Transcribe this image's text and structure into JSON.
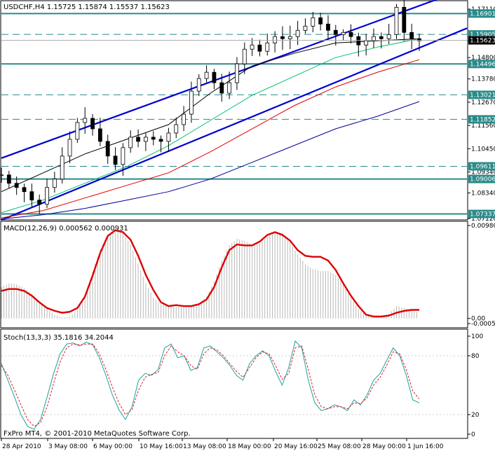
{
  "chart_data": [
    {
      "type": "candlestick",
      "title": "USDCHF,H4  1.15725 1.15874 1.15537 1.15623",
      "symbol": "USDCHF",
      "timeframe": "H4",
      "ohlc_last": [
        1.15725,
        1.15874,
        1.15537,
        1.15623
      ],
      "ylim": [
        1.0712,
        1.1738
      ],
      "y_ticks": [
        "1.17110",
        "1.15590",
        "1.14800",
        "1.13780",
        "1.12670",
        "1.11560",
        "1.10450",
        "1.09340",
        "1.08340",
        "1.07120"
      ],
      "x_ticks": [
        "28 Apr 2010",
        "3 May 08:00",
        "6 May 00:00",
        "10 May 16:00",
        "13 May 08:00",
        "18 May 00:00",
        "20 May 16:00",
        "25 May 08:00",
        "28 May 00:00",
        "1 Jun 16:00"
      ],
      "bid_price": 1.15623,
      "horizontal_levels": [
        {
          "value": 1.16901,
          "label": "1.16901",
          "style": "solid"
        },
        {
          "value": 1.15905,
          "label": "1.15905",
          "style": "dashed"
        },
        {
          "value": 1.14496,
          "label": "1.14496",
          "style": "solid"
        },
        {
          "value": 1.13021,
          "label": "1.13021",
          "style": "dashed"
        },
        {
          "value": 1.11852,
          "label": "1.11852",
          "style": "dashed"
        },
        {
          "value": 1.09611,
          "label": "1.09611",
          "style": "dashed"
        },
        {
          "value": 1.09006,
          "label": "1.09006",
          "style": "solid"
        },
        {
          "value": 1.07337,
          "label": "1.07337",
          "style": "solid"
        }
      ],
      "channel_lines": [
        {
          "name": "upper",
          "start": 1.1,
          "end": 1.181
        },
        {
          "name": "lower",
          "start": 1.0705,
          "end": 1.162
        }
      ],
      "close_path": [
        1.092,
        1.088,
        1.086,
        1.084,
        1.08,
        1.078,
        1.086,
        1.09,
        1.101,
        1.109,
        1.117,
        1.119,
        1.114,
        1.108,
        1.101,
        1.097,
        1.105,
        1.11,
        1.108,
        1.11,
        1.109,
        1.108,
        1.112,
        1.116,
        1.121,
        1.132,
        1.138,
        1.141,
        1.136,
        1.131,
        1.136,
        1.145,
        1.152,
        1.154,
        1.151,
        1.155,
        1.158,
        1.157,
        1.158,
        1.161,
        1.163,
        1.167,
        1.164,
        1.161,
        1.159,
        1.16,
        1.158,
        1.154,
        1.156,
        1.158,
        1.157,
        1.159,
        1.172,
        1.16,
        1.157,
        1.156
      ],
      "moving_averages": [
        {
          "color": "#000000",
          "values": [
            1.084,
            1.093,
            1.102,
            1.109,
            1.116,
            1.131,
            1.144,
            1.15,
            1.155,
            1.156,
            1.157
          ]
        },
        {
          "color": "#00c070",
          "values": [
            1.074,
            1.08,
            1.088,
            1.096,
            1.106,
            1.118,
            1.13,
            1.139,
            1.148,
            1.153,
            1.157
          ]
        },
        {
          "color": "#e00000",
          "values": [
            1.0715,
            1.075,
            1.081,
            1.087,
            1.093,
            1.103,
            1.114,
            1.125,
            1.134,
            1.141,
            1.147
          ]
        },
        {
          "color": "#0000a0",
          "values": [
            1.071,
            1.073,
            1.076,
            1.08,
            1.084,
            1.09,
            1.098,
            1.106,
            1.114,
            1.12,
            1.127
          ]
        }
      ]
    },
    {
      "type": "bar",
      "title": "MACD(12,26,9) 0.000562 0.000931",
      "y_ticks": [
        "0.00980",
        "0.00",
        "-0.00054"
      ],
      "ylim": [
        -0.00054,
        0.0098
      ],
      "histogram": [
        0.0033,
        0.0037,
        0.0036,
        0.0032,
        0.0026,
        0.0018,
        0.001,
        0.0004,
        0.0001,
        0.0002,
        0.0009,
        0.0025,
        0.0049,
        0.0073,
        0.0088,
        0.0094,
        0.009,
        0.0078,
        0.0058,
        0.0037,
        0.0022,
        0.0015,
        0.0013,
        0.0012,
        0.0012,
        0.0013,
        0.0016,
        0.0023,
        0.0039,
        0.0061,
        0.0077,
        0.0084,
        0.0082,
        0.0078,
        0.0079,
        0.0086,
        0.0092,
        0.009,
        0.008,
        0.0068,
        0.0057,
        0.0052,
        0.005,
        0.005,
        0.0046,
        0.0036,
        0.0022,
        0.001,
        0.0003,
        0.0001,
        0.0002,
        0.0005,
        0.0013,
        0.0011,
        0.0008,
        0.0006
      ],
      "signal_line": [
        0.0029,
        0.0031,
        0.0031,
        0.0029,
        0.0024,
        0.0017,
        0.0011,
        0.0008,
        0.0006,
        0.0007,
        0.0011,
        0.0023,
        0.0045,
        0.0069,
        0.0087,
        0.0093,
        0.0091,
        0.0083,
        0.0066,
        0.0046,
        0.003,
        0.0017,
        0.0013,
        0.0014,
        0.0013,
        0.0013,
        0.0015,
        0.002,
        0.0033,
        0.0054,
        0.0072,
        0.0078,
        0.0077,
        0.0077,
        0.0081,
        0.0088,
        0.0091,
        0.0088,
        0.0082,
        0.0072,
        0.0066,
        0.0065,
        0.0065,
        0.0061,
        0.0051,
        0.0037,
        0.0024,
        0.0013,
        0.0004,
        0.0002,
        0.0002,
        0.0003,
        0.0006,
        0.0008,
        0.0009,
        0.0009
      ]
    },
    {
      "type": "line",
      "title": "Stoch(13,3,3) 35.1816 34.2044",
      "y_ticks": [
        "100",
        "80",
        "20",
        "0"
      ],
      "ylim": [
        0,
        100
      ],
      "series": [
        {
          "color": "#20a0a0",
          "values": [
            72,
            55,
            38,
            20,
            8,
            5,
            15,
            38,
            62,
            82,
            92,
            93,
            90,
            94,
            91,
            78,
            60,
            40,
            25,
            15,
            28,
            55,
            62,
            60,
            66,
            88,
            92,
            78,
            80,
            65,
            68,
            88,
            90,
            84,
            78,
            70,
            60,
            55,
            72,
            80,
            85,
            80,
            64,
            50,
            68,
            95,
            88,
            55,
            32,
            24,
            26,
            30,
            28,
            24,
            35,
            30,
            40,
            55,
            62,
            75,
            88,
            80,
            60,
            35,
            32
          ]
        },
        {
          "color": "#e02020",
          "dash": "3,2",
          "values": [
            70,
            60,
            45,
            30,
            15,
            8,
            12,
            28,
            52,
            74,
            88,
            92,
            91,
            92,
            92,
            82,
            66,
            48,
            32,
            20,
            25,
            45,
            58,
            61,
            63,
            80,
            90,
            84,
            80,
            70,
            66,
            82,
            88,
            86,
            80,
            72,
            64,
            58,
            68,
            78,
            84,
            82,
            70,
            56,
            62,
            88,
            90,
            66,
            40,
            28,
            26,
            28,
            28,
            26,
            32,
            31,
            37,
            50,
            58,
            70,
            84,
            82,
            66,
            44,
            36
          ]
        }
      ]
    }
  ],
  "footer_text": "FxPro MT4, © 2001-2010 MetaQuotes Software Corp."
}
